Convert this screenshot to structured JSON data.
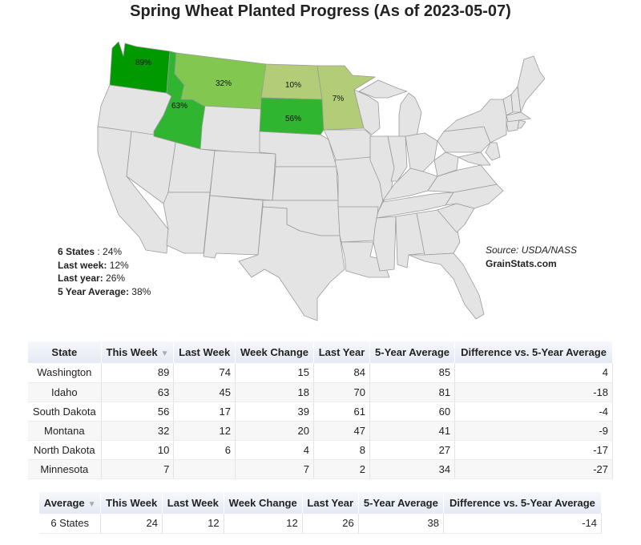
{
  "title": "Spring Wheat Planted Progress (As of 2023-05-07)",
  "map_states": [
    {
      "name": "Washington",
      "label": "89%",
      "color": "#009a00"
    },
    {
      "name": "Idaho",
      "label": "63%",
      "color": "#2fb52f"
    },
    {
      "name": "Montana",
      "label": "32%",
      "color": "#82c850"
    },
    {
      "name": "North Dakota",
      "label": "10%",
      "color": "#b3cc78"
    },
    {
      "name": "South Dakota",
      "label": "56%",
      "color": "#2fb52f"
    },
    {
      "name": "Minnesota",
      "label": "7%",
      "color": "#b3cc78"
    }
  ],
  "summary": {
    "line1_bold": "6 States",
    "line1_rest": " : 24%",
    "line2_bold": "Last week:",
    "line2_rest": " 12%",
    "line3_bold": "Last year:",
    "line3_rest": " 26%",
    "line4_bold": "5 Year Average:",
    "line4_rest": " 38%"
  },
  "source": {
    "text": "Source: USDA/NASS",
    "brand": "GrainStats.com"
  },
  "main_table": {
    "headers": [
      "State",
      "This Week",
      "Last Week",
      "Week Change",
      "Last Year",
      "5-Year Average",
      "Difference vs. 5-Year Average"
    ],
    "sort_icon": "▼",
    "rows": [
      [
        "Washington",
        "89",
        "74",
        "15",
        "84",
        "85",
        "4"
      ],
      [
        "Idaho",
        "63",
        "45",
        "18",
        "70",
        "81",
        "-18"
      ],
      [
        "South Dakota",
        "56",
        "17",
        "39",
        "61",
        "60",
        "-4"
      ],
      [
        "Montana",
        "32",
        "12",
        "20",
        "47",
        "41",
        "-9"
      ],
      [
        "North Dakota",
        "10",
        "6",
        "4",
        "8",
        "27",
        "-17"
      ],
      [
        "Minnesota",
        "7",
        "",
        "7",
        "2",
        "34",
        "-27"
      ]
    ]
  },
  "avg_table": {
    "headers": [
      "Average",
      "This Week",
      "Last Week",
      "Week Change",
      "Last Year",
      "5-Year Average",
      "Difference vs. 5-Year Average"
    ],
    "sort_icon": "▼",
    "rows": [
      [
        "6 States",
        "24",
        "12",
        "12",
        "26",
        "38",
        "-14"
      ]
    ]
  }
}
